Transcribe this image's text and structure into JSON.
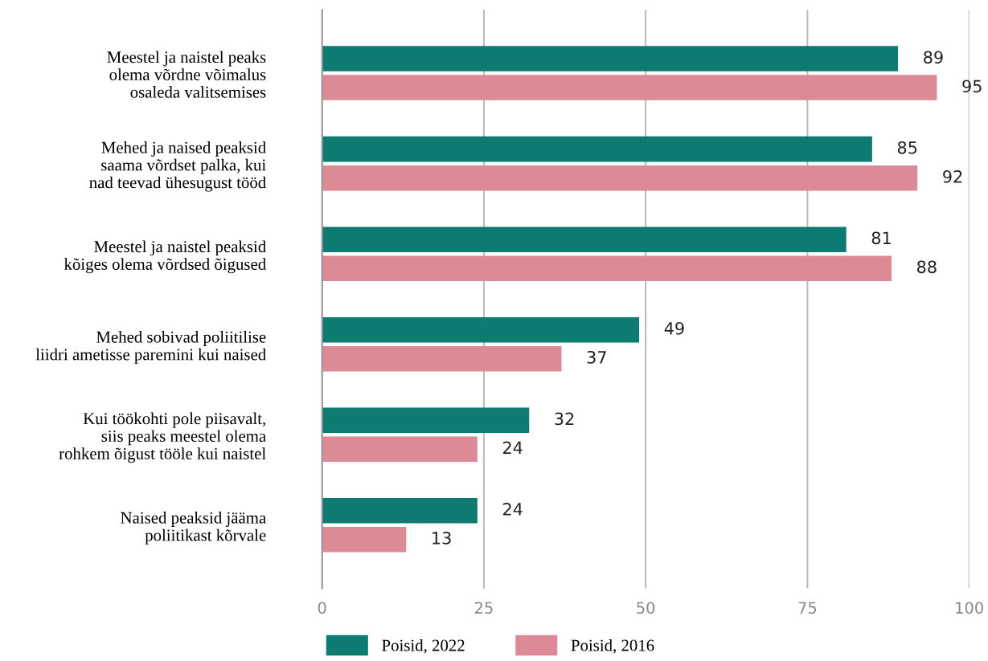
{
  "chart_data": {
    "type": "bar",
    "orientation": "horizontal",
    "categories": [
      "Meestel ja naistel peaks\nolema võrdne võimalus\nosaleda valitsemises",
      "Mehed ja naised peaksid\nsaama võrdset palka, kui\nnad teevad ühesugust tööd",
      "Meestel ja naistel peaksid\nkõiges olema võrdsed õigused",
      "Mehed sobivad poliitilise\nliidri ametisse paremini kui naised",
      "Kui töökohti pole piisavalt,\nsiis peaks meestel olema\nrohkem õigust tööle kui naistel",
      "Naised peaksid jääma\npoliitikast kõrvale"
    ],
    "series": [
      {
        "name": "Poisid, 2022",
        "color": "#0e7b72",
        "values": [
          89,
          85,
          81,
          49,
          32,
          24
        ]
      },
      {
        "name": "Poisid, 2016",
        "color": "#dc8a95",
        "values": [
          95,
          92,
          88,
          37,
          24,
          13
        ]
      }
    ],
    "xlim": [
      0,
      100
    ],
    "xticks": [
      0,
      25,
      50,
      75,
      100
    ],
    "grid": "x",
    "legend": "bottom",
    "data_labels": true
  }
}
